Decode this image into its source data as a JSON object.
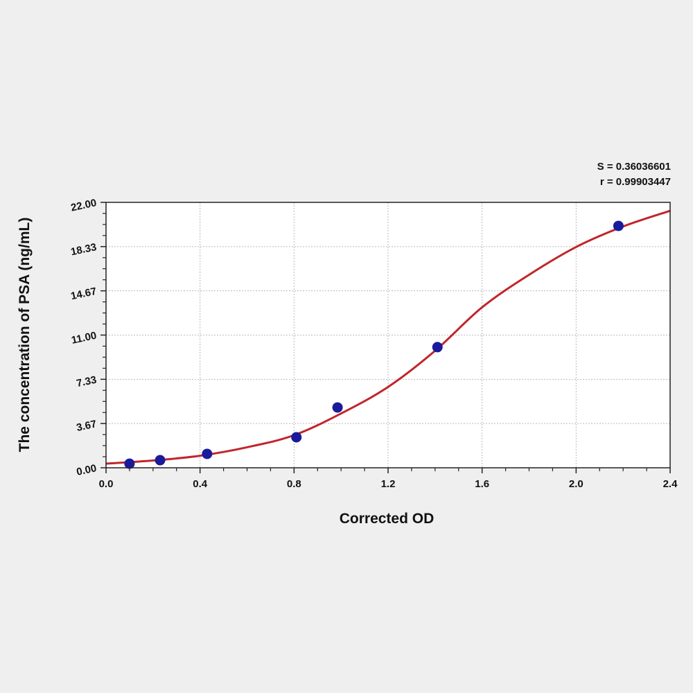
{
  "chart_data": {
    "type": "scatter",
    "xlabel": "Corrected OD",
    "ylabel": "The concentration of PSA (ng/mL)",
    "xlim": [
      0,
      2.4
    ],
    "ylim": [
      0,
      22
    ],
    "x_ticks": [
      "0.0",
      "0.4",
      "0.8",
      "1.2",
      "1.6",
      "2.0",
      "2.4"
    ],
    "y_ticks": [
      "0.00",
      "3.67",
      "7.33",
      "11.00",
      "14.67",
      "18.33",
      "22.00"
    ],
    "grid": true,
    "annotations": [
      "S = 0.36036601",
      "r = 0.99903447"
    ],
    "points": [
      {
        "x": 0.1,
        "y": 0.34
      },
      {
        "x": 0.23,
        "y": 0.63
      },
      {
        "x": 0.43,
        "y": 1.15
      },
      {
        "x": 0.81,
        "y": 2.53
      },
      {
        "x": 0.985,
        "y": 5.0
      },
      {
        "x": 1.41,
        "y": 10.0
      },
      {
        "x": 2.18,
        "y": 20.05
      }
    ],
    "fit_curve": [
      {
        "x": 0.0,
        "y": 0.34
      },
      {
        "x": 0.2,
        "y": 0.6
      },
      {
        "x": 0.4,
        "y": 1.0
      },
      {
        "x": 0.6,
        "y": 1.7
      },
      {
        "x": 0.8,
        "y": 2.7
      },
      {
        "x": 1.0,
        "y": 4.5
      },
      {
        "x": 1.2,
        "y": 6.7
      },
      {
        "x": 1.4,
        "y": 9.7
      },
      {
        "x": 1.6,
        "y": 13.3
      },
      {
        "x": 1.8,
        "y": 16.0
      },
      {
        "x": 2.0,
        "y": 18.3
      },
      {
        "x": 2.2,
        "y": 20.0
      },
      {
        "x": 2.4,
        "y": 21.3
      }
    ],
    "colors": {
      "points": "#1a1a9c",
      "curve": "#c0262b",
      "grid": "#b8b8b8",
      "background": "#efefef",
      "plot_background": "#ffffff"
    }
  }
}
